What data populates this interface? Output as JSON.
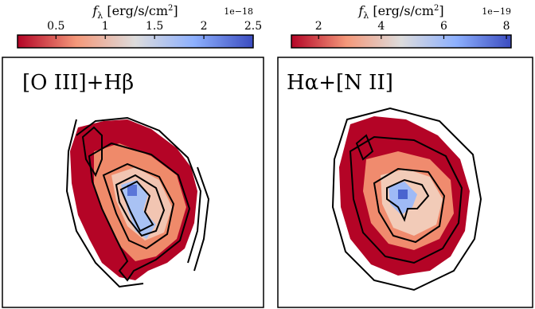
{
  "chart_data": [
    {
      "type": "image",
      "title": "[O III]+Hβ",
      "colorbar": {
        "label_parts": [
          "f",
          "λ",
          " [erg/s/cm",
          "2",
          "]"
        ],
        "offset": "1e−18",
        "xlim": [
          0.11,
          2.5
        ],
        "xticks": [
          0.5,
          1.0,
          1.5,
          2.0,
          2.5
        ],
        "colormap": [
          "#b40426",
          "#f4987a",
          "#dddcdc",
          "#8db0fe",
          "#3b4cc0"
        ]
      }
    },
    {
      "type": "image",
      "title": "Hα+[N II]",
      "colorbar": {
        "label_parts": [
          "f",
          "λ",
          " [erg/s/cm",
          "2",
          "]"
        ],
        "offset": "1e−19",
        "xlim": [
          1.13,
          8.15
        ],
        "xticks": [
          2,
          4,
          6,
          8
        ],
        "colormap": [
          "#b40426",
          "#f4987a",
          "#dddcdc",
          "#8db0fe",
          "#3b4cc0"
        ]
      }
    }
  ]
}
